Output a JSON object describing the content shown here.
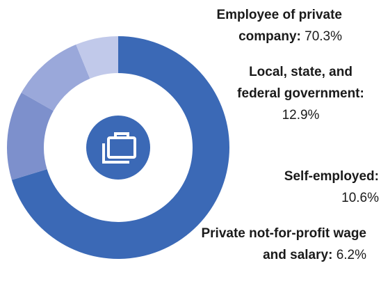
{
  "chart_data": {
    "type": "donut",
    "categories": [
      "Employee of private company:",
      "Local, state, and federal government:",
      "Self-employed:",
      "Private not-for-profit wage and salary:"
    ],
    "values": [
      70.3,
      12.9,
      10.6,
      6.2
    ],
    "value_labels": [
      "70.3%",
      "12.9%",
      "10.6%",
      "6.2%"
    ],
    "colors": [
      "#3b69b6",
      "#7d90cc",
      "#9aa8da",
      "#c1c9ea"
    ]
  }
}
